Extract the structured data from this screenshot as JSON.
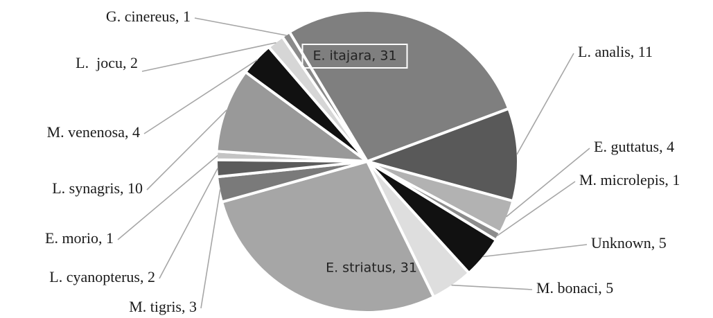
{
  "chart_data": {
    "type": "pie",
    "title": "",
    "start_angle_deg": -121,
    "series": [
      {
        "name": "E. itajara",
        "value": 31,
        "color": "#7f7f7f",
        "label": "E. itajara, 31",
        "placement": "inside-boxed"
      },
      {
        "name": "L. analis",
        "value": 11,
        "color": "#595959",
        "label": "L. analis, 11",
        "placement": "right"
      },
      {
        "name": "E. guttatus",
        "value": 4,
        "color": "#b2b2b2",
        "label": "E. guttatus, 4",
        "placement": "right"
      },
      {
        "name": "M. microlepis",
        "value": 1,
        "color": "#8c8c8c",
        "label": "M. microlepis, 1",
        "placement": "right"
      },
      {
        "name": "Unknown",
        "value": 5,
        "color": "#111111",
        "label": "Unknown, 5",
        "placement": "right"
      },
      {
        "name": "M. bonaci",
        "value": 5,
        "color": "#dedede",
        "label": "M. bonaci, 5",
        "placement": "right"
      },
      {
        "name": "E. striatus",
        "value": 31,
        "color": "#a6a6a6",
        "label": "E. striatus, 31",
        "placement": "inside"
      },
      {
        "name": "M. tigris",
        "value": 3,
        "color": "#7a7a7a",
        "label": "M. tigris, 3",
        "placement": "left"
      },
      {
        "name": "L. cyanopterus",
        "value": 2,
        "color": "#5c5c5c",
        "label": "L. cyanopterus, 2",
        "placement": "left"
      },
      {
        "name": "E. morio",
        "value": 1,
        "color": "#c4c4c4",
        "label": "E. morio, 1",
        "placement": "left"
      },
      {
        "name": "L. synagris",
        "value": 10,
        "color": "#999999",
        "label": "L. synagris, 10",
        "placement": "left"
      },
      {
        "name": "M. venenosa",
        "value": 4,
        "color": "#111111",
        "label": "M. venenosa, 4",
        "placement": "left"
      },
      {
        "name": "L. jocu",
        "value": 2,
        "color": "#d6d6d6",
        "label": "L.  jocu, 2",
        "placement": "left"
      },
      {
        "name": "G. cinereus",
        "value": 1,
        "color": "#8a8a8a",
        "label": "G. cinereus, 1",
        "placement": "left"
      }
    ]
  }
}
